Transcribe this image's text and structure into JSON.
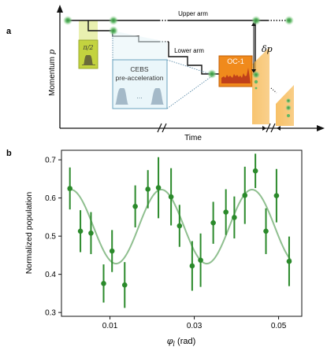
{
  "panel_a": {
    "label": "a",
    "ylabel_text": "Momentum ",
    "ylabel_symbol": "p",
    "xlabel": "Time",
    "upper_arm": "Upper arm",
    "lower_arm": "Lower arm",
    "pulse_label": "π/2",
    "cebs_line1": "CEBS",
    "cebs_line2": "pre-acceleration",
    "cebs_dots": "...",
    "oc_label": "OC-1",
    "delta_p": "δp",
    "colors": {
      "atom": "#3ea04a",
      "pulse_box": "#c6d64a",
      "cebs_box": "#eaf6fa",
      "cebs_border": "#6aa3bf",
      "oc_box": "#f08a1c",
      "band": "#f6b64d"
    }
  },
  "panel_b": {
    "label": "b",
    "ylabel": "Normalized population",
    "xlabel_symbol": "φ",
    "xlabel_sub": "l",
    "xlabel_unit": " (rad)",
    "colors": {
      "points": "#2b8a2b",
      "fit": "#8fbf8f"
    }
  },
  "chart_data": {
    "type": "scatter",
    "xlim": [
      -0.0015,
      0.0555
    ],
    "ylim": [
      0.29,
      0.725
    ],
    "xticks": [
      0.01,
      0.03,
      0.05
    ],
    "xtick_labels": [
      "0.01",
      "0.03",
      "0.05"
    ],
    "yticks": [
      0.3,
      0.4,
      0.5,
      0.6,
      0.7
    ],
    "ytick_labels": [
      "0.3",
      "0.4",
      "0.5",
      "0.6",
      "0.7"
    ],
    "grid": false,
    "series": [
      {
        "kind": "points_with_errorbars",
        "x": [
          0.0005,
          0.003,
          0.0055,
          0.0085,
          0.0105,
          0.0135,
          0.016,
          0.019,
          0.0215,
          0.0245,
          0.0265,
          0.0295,
          0.0315,
          0.0345,
          0.0375,
          0.0395,
          0.042,
          0.0445,
          0.047,
          0.0495,
          0.0525
        ],
        "y": [
          0.625,
          0.513,
          0.508,
          0.376,
          0.461,
          0.372,
          0.578,
          0.623,
          0.627,
          0.603,
          0.527,
          0.422,
          0.437,
          0.535,
          0.563,
          0.549,
          0.607,
          0.671,
          0.513,
          0.606,
          0.434
        ],
        "err": [
          0.055,
          0.055,
          0.055,
          0.05,
          0.055,
          0.06,
          0.055,
          0.05,
          0.08,
          0.075,
          0.055,
          0.065,
          0.07,
          0.055,
          0.06,
          0.055,
          0.075,
          0.045,
          0.06,
          0.07,
          0.065
        ]
      },
      {
        "kind": "fit",
        "model": "offset + amplitude*cos(2*pi*(x - x0)/period)",
        "offset": 0.525,
        "amplitude": 0.097,
        "period": 0.0215,
        "x0": 0.0222,
        "x_range": [
          0.0,
          0.053
        ]
      }
    ]
  }
}
